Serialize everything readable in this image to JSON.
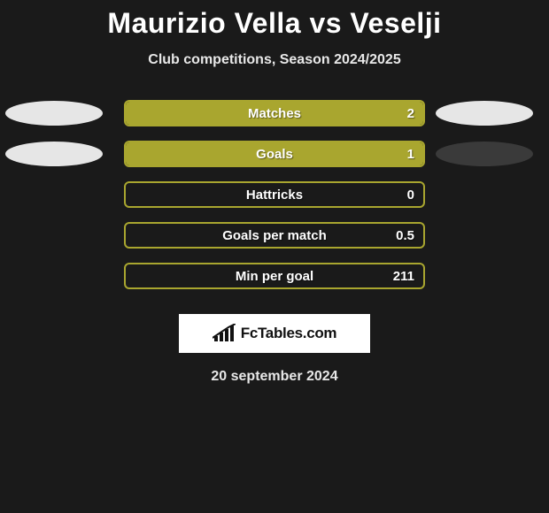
{
  "title": "Maurizio Vella vs Veselji",
  "subtitle": "Club competitions, Season 2024/2025",
  "colors": {
    "left_oval": "#e6e6e6",
    "right_oval_dark": "#3a3a3a",
    "right_oval_light": "#e6e6e6",
    "pill_border": "#a9a62f",
    "pill_fill": "#a9a62f",
    "brand_bg": "#ffffff",
    "brand_text": "#111111"
  },
  "rows": [
    {
      "label": "Matches",
      "value": "2",
      "fill_pct": 100,
      "show_left_oval": true,
      "show_right_oval": true,
      "right_oval_variant": "light"
    },
    {
      "label": "Goals",
      "value": "1",
      "fill_pct": 100,
      "show_left_oval": true,
      "show_right_oval": true,
      "right_oval_variant": "dark"
    },
    {
      "label": "Hattricks",
      "value": "0",
      "fill_pct": 0,
      "show_left_oval": false,
      "show_right_oval": false,
      "right_oval_variant": "dark"
    },
    {
      "label": "Goals per match",
      "value": "0.5",
      "fill_pct": 0,
      "show_left_oval": false,
      "show_right_oval": false,
      "right_oval_variant": "dark"
    },
    {
      "label": "Min per goal",
      "value": "211",
      "fill_pct": 0,
      "show_left_oval": false,
      "show_right_oval": false,
      "right_oval_variant": "dark"
    }
  ],
  "brand": {
    "text": "FcTables.com"
  },
  "footer_date": "20 september 2024"
}
